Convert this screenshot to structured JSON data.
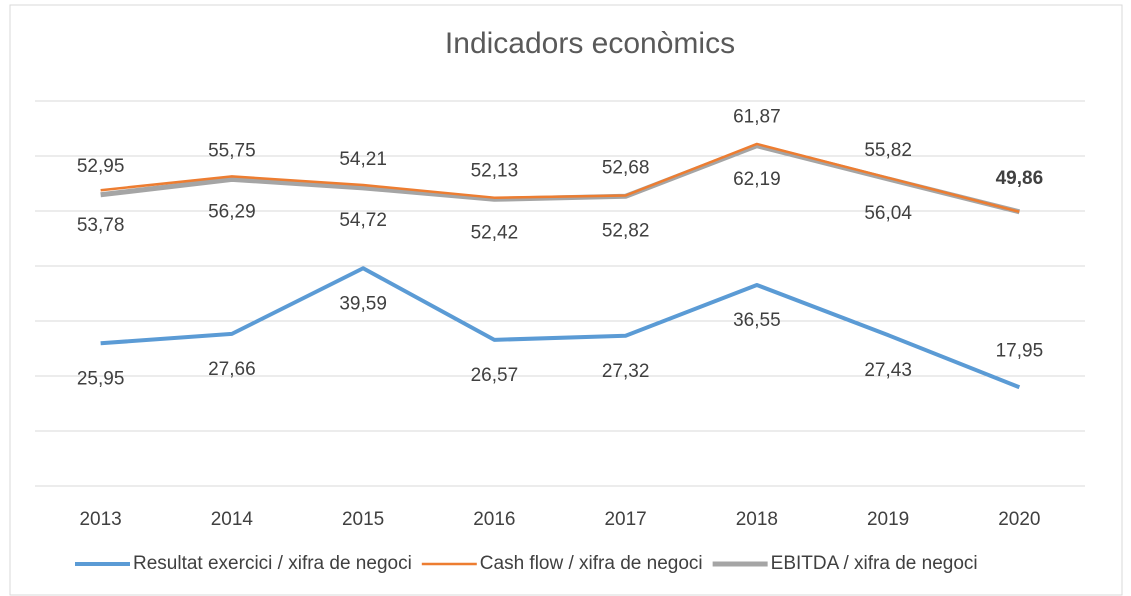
{
  "chart_data": {
    "type": "line",
    "title": "Indicadors econòmics",
    "categories": [
      "2013",
      "2014",
      "2015",
      "2016",
      "2017",
      "2018",
      "2019",
      "2020"
    ],
    "ylim": [
      0,
      70
    ],
    "yticks": [
      0,
      10,
      20,
      30,
      40,
      50,
      60,
      70
    ],
    "grid": true,
    "legend": "bottom",
    "series": [
      {
        "name": "Resultat exercici / xifra de negoci",
        "color": "#5b9bd5",
        "values": [
          25.95,
          27.66,
          39.59,
          26.57,
          27.32,
          36.55,
          27.43,
          17.95
        ],
        "value_labels": [
          "25,95",
          "27,66",
          "39,59",
          "26,57",
          "27,32",
          "36,55",
          "27,43",
          "17,95"
        ]
      },
      {
        "name": "Cash flow / xifra de negoci",
        "color": "#ed7d31",
        "values": [
          53.78,
          56.29,
          54.72,
          52.42,
          52.82,
          62.19,
          56.04,
          49.86
        ],
        "value_labels": [
          "53,78",
          "56,29",
          "54,72",
          "52,42",
          "52,82",
          "62,19",
          "56,04",
          null
        ]
      },
      {
        "name": "EBITDA / xifra de negoci",
        "color": "#a5a5a5",
        "values": [
          52.95,
          55.75,
          54.21,
          52.13,
          52.68,
          61.87,
          55.82,
          49.86
        ],
        "value_labels": [
          "52,95",
          "55,75",
          "54,21",
          "52,13",
          "52,68",
          "61,87",
          "55,82",
          "49,86"
        ]
      }
    ]
  }
}
